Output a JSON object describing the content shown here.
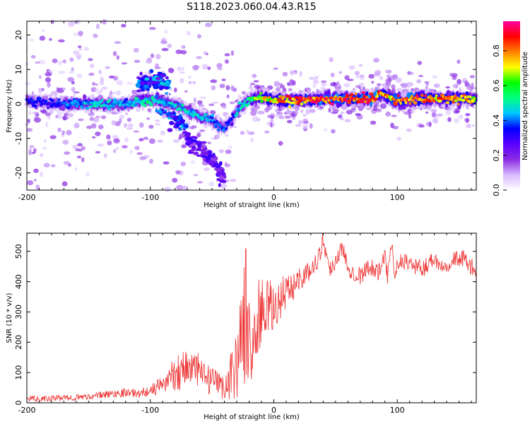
{
  "title": "S118.2023.060.04.43.R15",
  "chart_data": [
    {
      "type": "heatmap",
      "xlabel": "Height of straight line (km)",
      "ylabel": "Frequency (Hz)",
      "xlim": [
        -200,
        164
      ],
      "ylim": [
        -25,
        24
      ],
      "xticks": [
        -200,
        -100,
        0,
        100
      ],
      "xtick_labels": [
        "-200",
        "-100",
        "0",
        "100"
      ],
      "yticks": [
        -20,
        -10,
        0,
        10,
        20
      ],
      "ytick_labels": [
        "-20",
        "-10",
        "0",
        "10",
        "20"
      ],
      "colorbar": {
        "label": "Normalized spectral amplitude",
        "range": [
          0,
          0.97
        ],
        "ticks": [
          0,
          0.2,
          0.4,
          0.6,
          0.8
        ],
        "tick_labels": [
          "0.0",
          "0.2",
          "0.4",
          "0.6",
          "0.8"
        ],
        "colormap": [
          "#ffffff",
          "#d7b8ff",
          "#8a2be2",
          "#5a00ff",
          "#0000ff",
          "#00c8ff",
          "#00ff80",
          "#00ff00",
          "#ffff00",
          "#ff8000",
          "#ff0000",
          "#ff00a0"
        ]
      },
      "ridge": {
        "x": [
          -200,
          -180,
          -160,
          -140,
          -120,
          -105,
          -95,
          -85,
          -75,
          -65,
          -55,
          -45,
          -40,
          -35,
          -28,
          -20,
          -10,
          0,
          10,
          25,
          40,
          55,
          70,
          80,
          85,
          90,
          95,
          100,
          105,
          115,
          130,
          150,
          164
        ],
        "y": [
          1,
          0,
          0,
          0,
          0,
          1,
          1,
          0,
          -1,
          -3,
          -4,
          -6,
          -7,
          -5,
          -1,
          1,
          2,
          1,
          1,
          1,
          1.5,
          1.5,
          1.5,
          1.5,
          2.5,
          2.5,
          1.5,
          1,
          1,
          1.5,
          1.5,
          1.5,
          1.5
        ],
        "peak_amplitude": [
          0.35,
          0.35,
          0.45,
          0.5,
          0.45,
          0.55,
          0.5,
          0.45,
          0.5,
          0.5,
          0.45,
          0.4,
          0.4,
          0.35,
          0.5,
          0.6,
          0.75,
          0.8,
          0.85,
          0.9,
          0.92,
          0.95,
          0.95,
          0.9,
          0.9,
          0.85,
          0.85,
          0.85,
          0.9,
          0.9,
          0.85,
          0.8,
          0.75
        ]
      },
      "secondary_branches": [
        {
          "x": [
            -110,
            -100,
            -92,
            -85
          ],
          "y": [
            6,
            6,
            7,
            5
          ],
          "amplitude": 0.45
        },
        {
          "x": [
            -95,
            -85,
            -75,
            -70
          ],
          "y": [
            0,
            -2,
            -5,
            -8
          ],
          "amplitude": 0.45
        },
        {
          "x": [
            -70,
            -60,
            -50,
            -45,
            -40
          ],
          "y": [
            -10,
            -13,
            -16,
            -19,
            -21
          ],
          "amplitude": 0.3
        }
      ]
    },
    {
      "type": "line",
      "xlabel": "Height of straight line (km)",
      "ylabel": "SNR (10 * v/v)",
      "xlim": [
        -200,
        164
      ],
      "ylim": [
        0,
        560
      ],
      "xticks": [
        -200,
        -100,
        0,
        100
      ],
      "xtick_labels": [
        "-200",
        "-100",
        "0",
        "100"
      ],
      "yticks": [
        0,
        100,
        200,
        300,
        400,
        500
      ],
      "ytick_labels": [
        "0",
        "100",
        "200",
        "300",
        "400",
        "500"
      ],
      "color": "#ee3333",
      "series": [
        {
          "x": [
            -200,
            -190,
            -180,
            -170,
            -160,
            -150,
            -140,
            -130,
            -120,
            -110,
            -100,
            -95,
            -90,
            -85,
            -80,
            -75,
            -70,
            -65,
            -60,
            -55,
            -50,
            -45,
            -40,
            -35,
            -30,
            -25,
            -22,
            -20,
            -18,
            -15,
            -10,
            -5,
            0,
            5,
            10,
            12,
            15,
            20,
            25,
            30,
            35,
            38,
            40,
            42,
            45,
            50,
            55,
            58,
            60,
            65,
            70,
            75,
            80,
            85,
            90,
            92,
            95,
            98,
            100,
            105,
            110,
            115,
            120,
            125,
            130,
            135,
            140,
            145,
            150,
            155,
            160,
            164
          ],
          "y": [
            15,
            12,
            14,
            16,
            18,
            20,
            25,
            30,
            35,
            30,
            40,
            50,
            60,
            80,
            100,
            110,
            120,
            110,
            100,
            80,
            70,
            60,
            50,
            90,
            130,
            250,
            300,
            200,
            150,
            250,
            300,
            320,
            300,
            340,
            380,
            360,
            380,
            410,
            420,
            440,
            470,
            500,
            540,
            500,
            440,
            470,
            510,
            480,
            450,
            430,
            420,
            440,
            450,
            430,
            480,
            420,
            540,
            430,
            450,
            470,
            460,
            450,
            440,
            460,
            480,
            450,
            460,
            470,
            480,
            470,
            450,
            420
          ],
          "noise_amplitude": [
            10,
            10,
            10,
            10,
            10,
            10,
            12,
            14,
            15,
            15,
            20,
            25,
            30,
            40,
            60,
            70,
            80,
            70,
            60,
            50,
            45,
            40,
            40,
            80,
            120,
            180,
            250,
            160,
            120,
            140,
            120,
            100,
            80,
            70,
            70,
            60,
            50,
            40,
            35,
            30,
            30,
            30,
            30,
            30,
            30,
            30,
            30,
            30,
            30,
            30,
            30,
            30,
            30,
            30,
            30,
            30,
            30,
            30,
            30,
            30,
            30,
            30,
            30,
            30,
            30,
            30,
            30,
            30,
            30,
            30,
            30,
            30
          ]
        }
      ]
    }
  ]
}
